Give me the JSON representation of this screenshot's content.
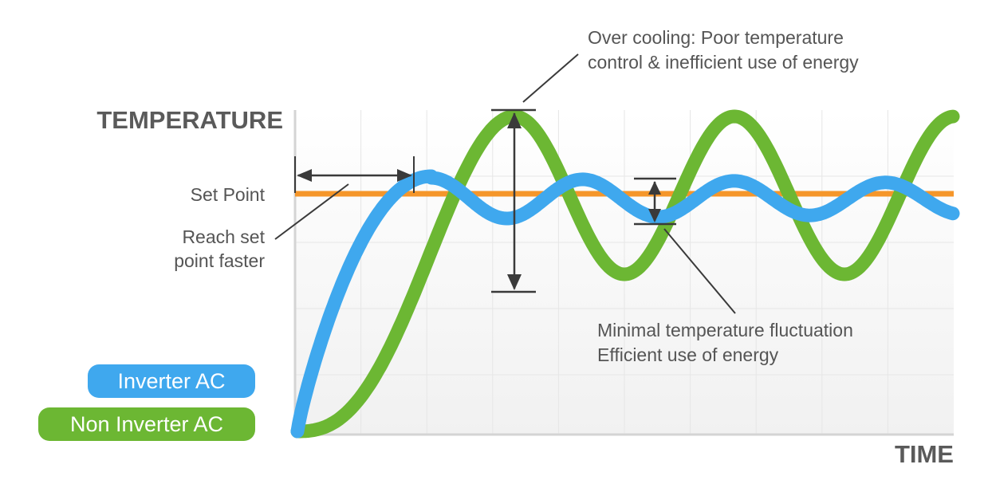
{
  "title_axis_y": "TEMPERATURE",
  "title_axis_x": "TIME",
  "labels": {
    "set_point": "Set Point",
    "reach_line1": "Reach set",
    "reach_line2": "point faster",
    "overcool_line1": "Over cooling: Poor temperature",
    "overcool_line2": "control & inefficient use of energy",
    "minimal_line1": "Minimal temperature fluctuation",
    "minimal_line2": "Efficient use of energy"
  },
  "legend": {
    "inverter": "Inverter  AC",
    "non_inverter": "Non Inverter  AC"
  },
  "colors": {
    "inverter": "#3fa8ee",
    "non_inverter": "#6cb733",
    "set_point": "#f5962a",
    "annotation": "#3a3a3a",
    "text": "#555555",
    "grid": "#e6e6e6"
  }
}
